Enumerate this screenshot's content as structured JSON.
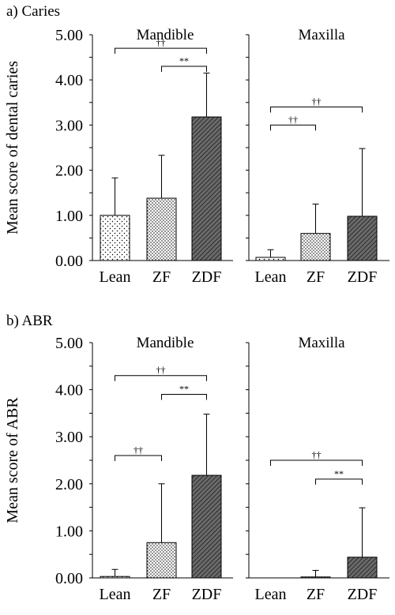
{
  "chart_data": [
    {
      "type": "bar",
      "section_label": "a) Caries",
      "ylabel": "Mean score of dental caries",
      "ylim": [
        0,
        5
      ],
      "y_ticks": [
        "0.00",
        "1.00",
        "2.00",
        "3.00",
        "4.00",
        "5.00"
      ],
      "categories": [
        "Lean",
        "ZF",
        "ZDF"
      ],
      "panels": [
        {
          "title": "Mandible",
          "values": [
            1.0,
            1.38,
            3.18
          ],
          "errors": [
            0.83,
            0.95,
            0.97
          ],
          "annotations": [
            {
              "from": 0,
              "to": 2,
              "label": "††",
              "y": 4.7
            },
            {
              "from": 1,
              "to": 2,
              "label": "**",
              "y": 4.3
            }
          ]
        },
        {
          "title": "Maxilla",
          "values": [
            0.07,
            0.6,
            0.98
          ],
          "errors": [
            0.17,
            0.65,
            1.5
          ],
          "annotations": [
            {
              "from": 0,
              "to": 2,
              "label": "††",
              "y": 3.4
            },
            {
              "from": 0,
              "to": 1,
              "label": "††",
              "y": 3.0
            }
          ]
        }
      ]
    },
    {
      "type": "bar",
      "section_label": "b) ABR",
      "ylabel": "Mean score of ABR",
      "ylim": [
        0,
        5
      ],
      "y_ticks": [
        "0.00",
        "1.00",
        "2.00",
        "3.00",
        "4.00",
        "5.00"
      ],
      "categories": [
        "Lean",
        "ZF",
        "ZDF"
      ],
      "panels": [
        {
          "title": "Mandible",
          "values": [
            0.03,
            0.75,
            2.18
          ],
          "errors": [
            0.15,
            1.25,
            1.3
          ],
          "annotations": [
            {
              "from": 0,
              "to": 2,
              "label": "††",
              "y": 4.3
            },
            {
              "from": 1,
              "to": 2,
              "label": "**",
              "y": 3.9
            },
            {
              "from": 0,
              "to": 1,
              "label": "††",
              "y": 2.6
            }
          ]
        },
        {
          "title": "Maxilla",
          "values": [
            0.0,
            0.02,
            0.44
          ],
          "errors": [
            0.0,
            0.14,
            1.05
          ],
          "annotations": [
            {
              "from": 0,
              "to": 2,
              "label": "††",
              "y": 2.5
            },
            {
              "from": 1,
              "to": 2,
              "label": "**",
              "y": 2.1
            }
          ]
        }
      ]
    }
  ]
}
